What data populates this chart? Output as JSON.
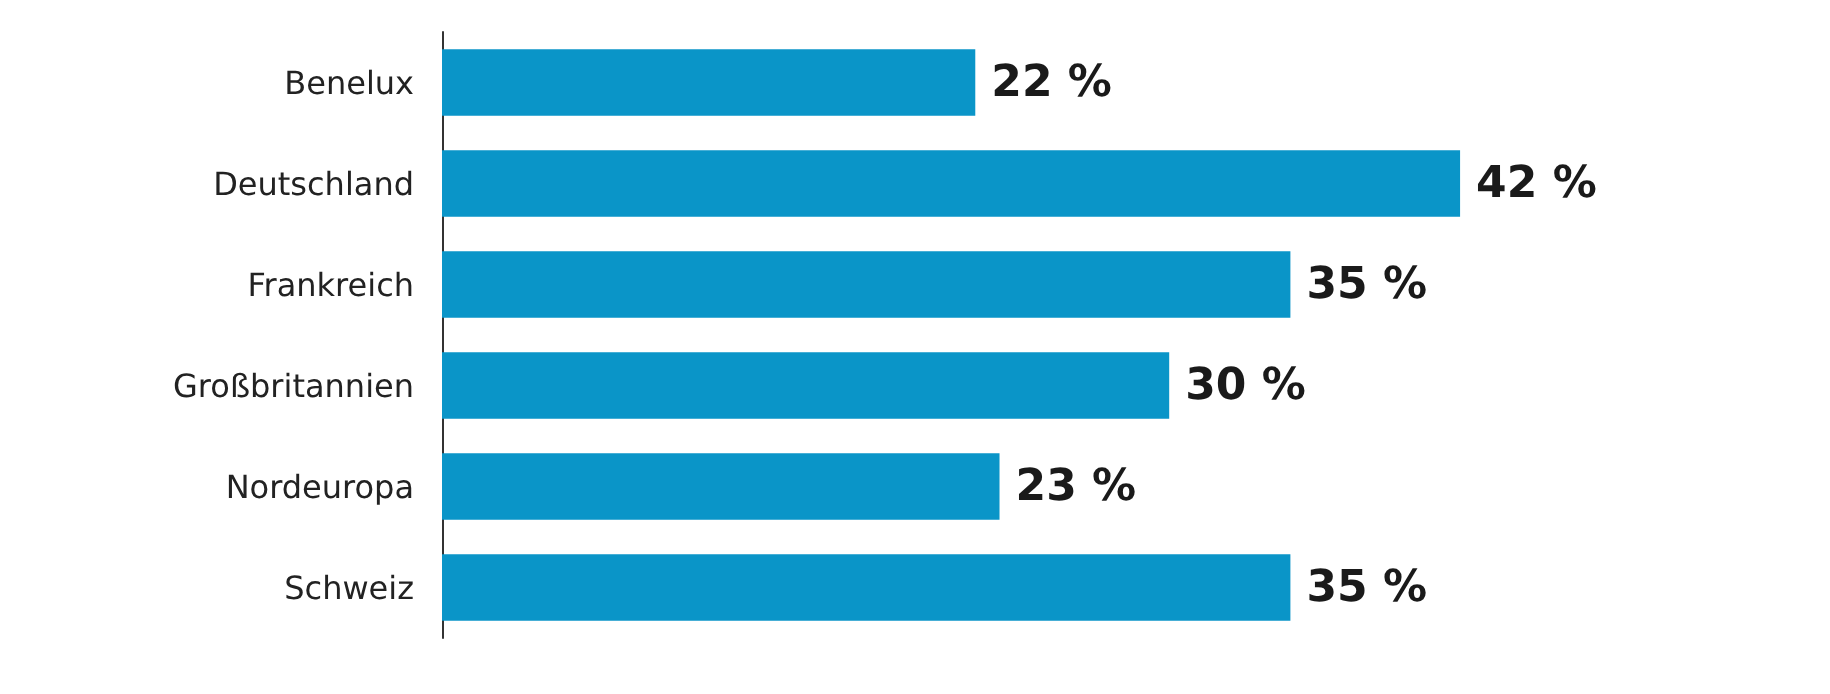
{
  "chart_data": {
    "type": "bar",
    "orientation": "horizontal",
    "categories": [
      "Benelux",
      "Deutschland",
      "Frankreich",
      "Großbritannien",
      "Nordeuropa",
      "Schweiz"
    ],
    "values": [
      22,
      42,
      35,
      30,
      23,
      35
    ],
    "value_labels": [
      "22 %",
      "42 %",
      "35 %",
      "30 %",
      "23 %",
      "35 %"
    ],
    "color": "#0a95c8",
    "grid": false
  }
}
